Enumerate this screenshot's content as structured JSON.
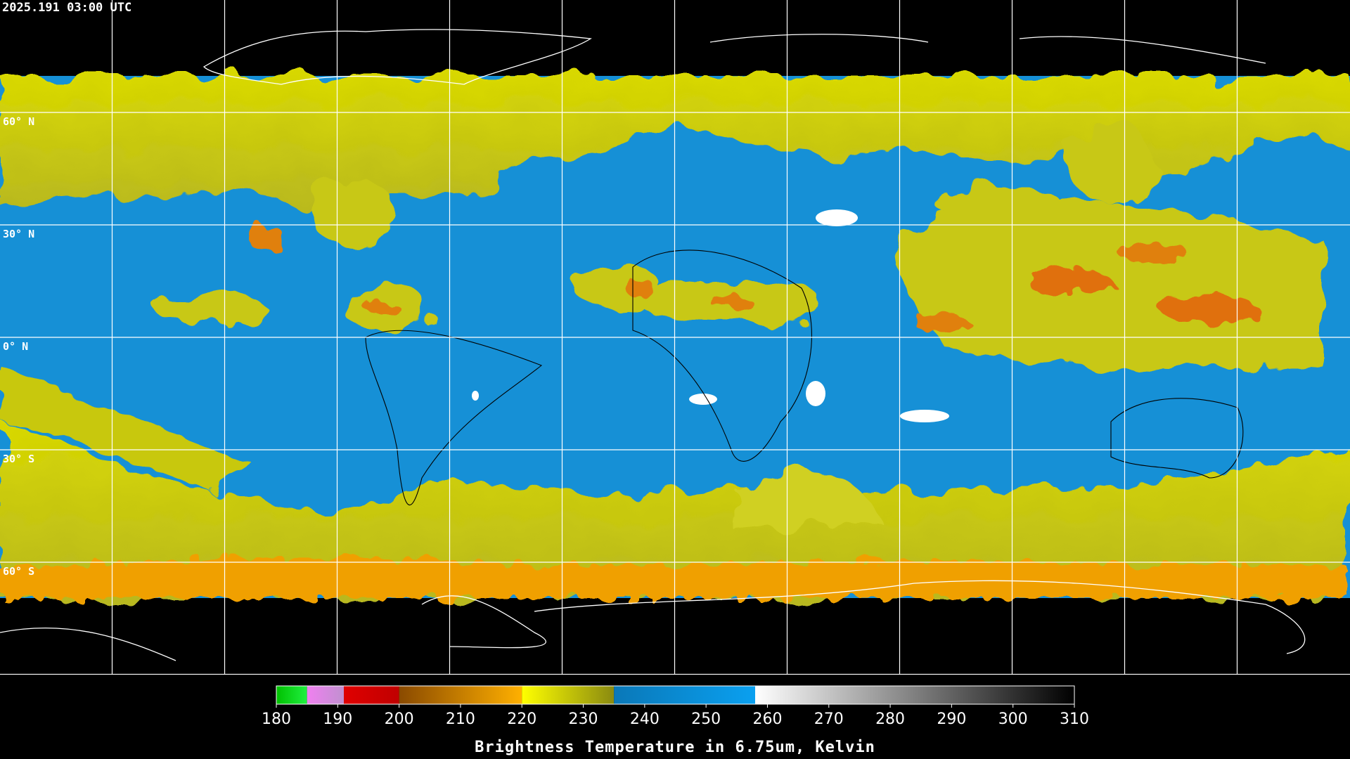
{
  "title": "2025.191 03:00 UTC",
  "latitude_labels": [
    "60° N",
    "30° N",
    "0° N",
    "30° S",
    "60° S"
  ],
  "colorbar": {
    "label": "Brightness Temperature in 6.75um, Kelvin",
    "lim": [
      180,
      310
    ],
    "ticks": [
      180,
      190,
      200,
      210,
      220,
      230,
      240,
      250,
      260,
      270,
      280,
      290,
      300,
      310
    ],
    "segments": [
      {
        "from": 180,
        "to": 185,
        "colors": [
          "#00c000",
          "#20f040"
        ]
      },
      {
        "from": 185,
        "to": 191,
        "colors": [
          "#f080f0",
          "#c090d0"
        ]
      },
      {
        "from": 191,
        "to": 200,
        "colors": [
          "#e00000",
          "#c00000"
        ]
      },
      {
        "from": 200,
        "to": 220,
        "colors": [
          "#8a4a00",
          "#ffb000"
        ]
      },
      {
        "from": 220,
        "to": 235,
        "colors": [
          "#ffff00",
          "#8a8a10"
        ]
      },
      {
        "from": 235,
        "to": 258,
        "colors": [
          "#0a78b8",
          "#0aa0f0"
        ]
      },
      {
        "from": 258,
        "to": 310,
        "colors": [
          "#ffffff",
          "#000000"
        ]
      }
    ]
  }
}
